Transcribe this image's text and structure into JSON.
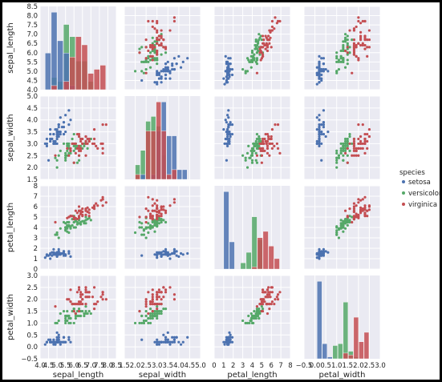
{
  "colors": {
    "background": "#ffffff",
    "panel": "#eaeaf2",
    "grid": "#ffffff",
    "setosa": "#4c72b0",
    "versicolor": "#55a868",
    "virginica": "#c44e52"
  },
  "chart_data": {
    "type": "scatter",
    "layout": "pair-grid",
    "diagonal": "histogram",
    "grid": true,
    "legend_position": "right",
    "legend": {
      "title": "species",
      "entries": [
        "setosa",
        "versicolor",
        "virginica"
      ]
    },
    "variables": [
      {
        "name": "sepal_length",
        "lim": [
          4.0,
          8.5
        ],
        "ticks": [
          "4.0",
          "4.5",
          "5.0",
          "5.5",
          "6.0",
          "6.5",
          "7.0",
          "7.5",
          "8.0",
          "8.5"
        ]
      },
      {
        "name": "sepal_width",
        "lim": [
          1.5,
          5.0
        ],
        "ticks": [
          "1.5",
          "2.0",
          "2.5",
          "3.0",
          "3.5",
          "4.0",
          "4.5",
          "5.0"
        ]
      },
      {
        "name": "petal_length",
        "lim": [
          0,
          8
        ],
        "ticks": [
          "0",
          "1",
          "2",
          "3",
          "4",
          "5",
          "6",
          "7",
          "8"
        ]
      },
      {
        "name": "petal_width",
        "lim": [
          -0.5,
          3.0
        ],
        "ticks": [
          "−0.5",
          "0.0",
          "0.5",
          "1.0",
          "1.5",
          "2.0",
          "2.5",
          "3.0"
        ]
      }
    ],
    "series": [
      {
        "name": "setosa",
        "points": [
          [
            5.1,
            3.5,
            1.4,
            0.2
          ],
          [
            4.9,
            3.0,
            1.4,
            0.2
          ],
          [
            4.7,
            3.2,
            1.3,
            0.2
          ],
          [
            4.6,
            3.1,
            1.5,
            0.2
          ],
          [
            5.0,
            3.6,
            1.4,
            0.2
          ],
          [
            5.4,
            3.9,
            1.7,
            0.4
          ],
          [
            4.6,
            3.4,
            1.4,
            0.3
          ],
          [
            5.0,
            3.4,
            1.5,
            0.2
          ],
          [
            4.4,
            2.9,
            1.4,
            0.2
          ],
          [
            4.9,
            3.1,
            1.5,
            0.1
          ],
          [
            5.4,
            3.7,
            1.5,
            0.2
          ],
          [
            4.8,
            3.4,
            1.6,
            0.2
          ],
          [
            4.8,
            3.0,
            1.4,
            0.1
          ],
          [
            4.3,
            3.0,
            1.1,
            0.1
          ],
          [
            5.8,
            4.0,
            1.2,
            0.2
          ],
          [
            5.7,
            4.4,
            1.5,
            0.4
          ],
          [
            5.4,
            3.9,
            1.3,
            0.4
          ],
          [
            5.1,
            3.5,
            1.4,
            0.3
          ],
          [
            5.7,
            3.8,
            1.7,
            0.3
          ],
          [
            5.1,
            3.8,
            1.5,
            0.3
          ],
          [
            5.4,
            3.4,
            1.7,
            0.2
          ],
          [
            5.1,
            3.7,
            1.5,
            0.4
          ],
          [
            4.6,
            3.6,
            1.0,
            0.2
          ],
          [
            5.1,
            3.3,
            1.7,
            0.5
          ],
          [
            4.8,
            3.4,
            1.9,
            0.2
          ],
          [
            5.0,
            3.0,
            1.6,
            0.2
          ],
          [
            5.0,
            3.4,
            1.6,
            0.4
          ],
          [
            5.2,
            3.5,
            1.5,
            0.2
          ],
          [
            5.2,
            3.4,
            1.4,
            0.2
          ],
          [
            4.7,
            3.2,
            1.6,
            0.2
          ],
          [
            4.8,
            3.1,
            1.6,
            0.2
          ],
          [
            5.4,
            3.4,
            1.5,
            0.4
          ],
          [
            5.2,
            4.1,
            1.5,
            0.1
          ],
          [
            5.5,
            4.2,
            1.4,
            0.2
          ],
          [
            4.9,
            3.1,
            1.5,
            0.2
          ],
          [
            5.0,
            3.2,
            1.2,
            0.2
          ],
          [
            5.5,
            3.5,
            1.3,
            0.2
          ],
          [
            4.9,
            3.6,
            1.4,
            0.1
          ],
          [
            4.4,
            3.0,
            1.3,
            0.2
          ],
          [
            5.1,
            3.4,
            1.5,
            0.2
          ],
          [
            5.0,
            3.5,
            1.3,
            0.3
          ],
          [
            4.5,
            2.3,
            1.3,
            0.3
          ],
          [
            4.4,
            3.2,
            1.3,
            0.2
          ],
          [
            5.0,
            3.5,
            1.6,
            0.6
          ],
          [
            5.1,
            3.8,
            1.9,
            0.4
          ],
          [
            4.8,
            3.0,
            1.4,
            0.3
          ],
          [
            5.1,
            3.8,
            1.6,
            0.2
          ],
          [
            4.6,
            3.2,
            1.4,
            0.2
          ],
          [
            5.3,
            3.7,
            1.5,
            0.2
          ],
          [
            5.0,
            3.3,
            1.4,
            0.2
          ]
        ]
      },
      {
        "name": "versicolor",
        "points": [
          [
            7.0,
            3.2,
            4.7,
            1.4
          ],
          [
            6.4,
            3.2,
            4.5,
            1.5
          ],
          [
            6.9,
            3.1,
            4.9,
            1.5
          ],
          [
            5.5,
            2.3,
            4.0,
            1.3
          ],
          [
            6.5,
            2.8,
            4.6,
            1.5
          ],
          [
            5.7,
            2.8,
            4.5,
            1.3
          ],
          [
            6.3,
            3.3,
            4.7,
            1.6
          ],
          [
            4.9,
            2.4,
            3.3,
            1.0
          ],
          [
            6.6,
            2.9,
            4.6,
            1.3
          ],
          [
            5.2,
            2.7,
            3.9,
            1.4
          ],
          [
            5.0,
            2.0,
            3.5,
            1.0
          ],
          [
            5.9,
            3.0,
            4.2,
            1.5
          ],
          [
            6.0,
            2.2,
            4.0,
            1.0
          ],
          [
            6.1,
            2.9,
            4.7,
            1.4
          ],
          [
            5.6,
            2.9,
            3.6,
            1.3
          ],
          [
            6.7,
            3.1,
            4.4,
            1.4
          ],
          [
            5.6,
            3.0,
            4.5,
            1.5
          ],
          [
            5.8,
            2.7,
            4.1,
            1.0
          ],
          [
            6.2,
            2.2,
            4.5,
            1.5
          ],
          [
            5.6,
            2.5,
            3.9,
            1.1
          ],
          [
            5.9,
            3.2,
            4.8,
            1.8
          ],
          [
            6.1,
            2.8,
            4.0,
            1.3
          ],
          [
            6.3,
            2.5,
            4.9,
            1.5
          ],
          [
            6.1,
            2.8,
            4.7,
            1.2
          ],
          [
            6.4,
            2.9,
            4.3,
            1.3
          ],
          [
            6.6,
            3.0,
            4.4,
            1.4
          ],
          [
            6.8,
            2.8,
            4.8,
            1.4
          ],
          [
            6.7,
            3.0,
            5.0,
            1.7
          ],
          [
            6.0,
            2.9,
            4.5,
            1.5
          ],
          [
            5.7,
            2.6,
            3.5,
            1.0
          ],
          [
            5.5,
            2.4,
            3.8,
            1.1
          ],
          [
            5.5,
            2.4,
            3.7,
            1.0
          ],
          [
            5.8,
            2.7,
            3.9,
            1.2
          ],
          [
            6.0,
            2.7,
            5.1,
            1.6
          ],
          [
            5.4,
            3.0,
            4.5,
            1.5
          ],
          [
            6.0,
            3.4,
            4.5,
            1.6
          ],
          [
            6.7,
            3.1,
            4.7,
            1.5
          ],
          [
            6.3,
            2.3,
            4.4,
            1.3
          ],
          [
            5.6,
            3.0,
            4.1,
            1.3
          ],
          [
            5.5,
            2.5,
            4.0,
            1.3
          ],
          [
            5.5,
            2.6,
            4.4,
            1.2
          ],
          [
            6.1,
            3.0,
            4.6,
            1.4
          ],
          [
            5.8,
            2.6,
            4.0,
            1.2
          ],
          [
            5.0,
            2.3,
            3.3,
            1.0
          ],
          [
            5.6,
            2.7,
            4.2,
            1.3
          ],
          [
            5.7,
            3.0,
            4.2,
            1.2
          ],
          [
            5.7,
            2.9,
            4.2,
            1.3
          ],
          [
            6.2,
            2.9,
            4.3,
            1.3
          ],
          [
            5.1,
            2.5,
            3.0,
            1.1
          ],
          [
            5.7,
            2.8,
            4.1,
            1.3
          ]
        ]
      },
      {
        "name": "virginica",
        "points": [
          [
            6.3,
            3.3,
            6.0,
            2.5
          ],
          [
            5.8,
            2.7,
            5.1,
            1.9
          ],
          [
            7.1,
            3.0,
            5.9,
            2.1
          ],
          [
            6.3,
            2.9,
            5.6,
            1.8
          ],
          [
            6.5,
            3.0,
            5.8,
            2.2
          ],
          [
            7.6,
            3.0,
            6.6,
            2.1
          ],
          [
            4.9,
            2.5,
            4.5,
            1.7
          ],
          [
            7.3,
            2.9,
            6.3,
            1.8
          ],
          [
            6.7,
            2.5,
            5.8,
            1.8
          ],
          [
            7.2,
            3.6,
            6.1,
            2.5
          ],
          [
            6.5,
            3.2,
            5.1,
            2.0
          ],
          [
            6.4,
            2.7,
            5.3,
            1.9
          ],
          [
            6.8,
            3.0,
            5.5,
            2.1
          ],
          [
            5.7,
            2.5,
            5.0,
            2.0
          ],
          [
            5.8,
            2.8,
            5.1,
            2.4
          ],
          [
            6.4,
            3.2,
            5.3,
            2.3
          ],
          [
            6.5,
            3.0,
            5.5,
            1.8
          ],
          [
            7.7,
            3.8,
            6.7,
            2.2
          ],
          [
            7.7,
            2.6,
            6.9,
            2.3
          ],
          [
            6.0,
            2.2,
            5.0,
            1.5
          ],
          [
            6.9,
            3.2,
            5.7,
            2.3
          ],
          [
            5.6,
            2.8,
            4.9,
            2.0
          ],
          [
            7.7,
            2.8,
            6.7,
            2.0
          ],
          [
            6.3,
            2.7,
            4.9,
            1.8
          ],
          [
            6.7,
            3.3,
            5.7,
            2.1
          ],
          [
            7.2,
            3.2,
            6.0,
            1.8
          ],
          [
            6.2,
            2.8,
            4.8,
            1.8
          ],
          [
            6.1,
            3.0,
            4.9,
            1.8
          ],
          [
            6.4,
            2.8,
            5.6,
            2.1
          ],
          [
            7.2,
            3.0,
            5.8,
            1.6
          ],
          [
            7.4,
            2.8,
            6.1,
            1.9
          ],
          [
            7.9,
            3.8,
            6.4,
            2.0
          ],
          [
            6.4,
            2.8,
            5.6,
            2.2
          ],
          [
            6.3,
            2.8,
            5.1,
            1.5
          ],
          [
            6.1,
            2.6,
            5.6,
            1.4
          ],
          [
            7.7,
            3.0,
            6.1,
            2.3
          ],
          [
            6.3,
            3.4,
            5.6,
            2.4
          ],
          [
            6.4,
            3.1,
            5.5,
            1.8
          ],
          [
            6.0,
            3.0,
            4.8,
            1.8
          ],
          [
            6.9,
            3.1,
            5.4,
            2.1
          ],
          [
            6.7,
            3.1,
            5.6,
            2.4
          ],
          [
            6.9,
            3.1,
            5.1,
            2.3
          ],
          [
            5.8,
            2.7,
            5.1,
            1.9
          ],
          [
            6.8,
            3.2,
            5.9,
            2.3
          ],
          [
            6.7,
            3.3,
            5.7,
            2.5
          ],
          [
            6.7,
            3.0,
            5.2,
            2.3
          ],
          [
            6.3,
            2.5,
            5.0,
            1.9
          ],
          [
            6.5,
            3.0,
            5.2,
            2.0
          ],
          [
            6.2,
            3.4,
            5.4,
            2.3
          ],
          [
            5.9,
            3.0,
            5.1,
            1.8
          ]
        ]
      }
    ]
  }
}
